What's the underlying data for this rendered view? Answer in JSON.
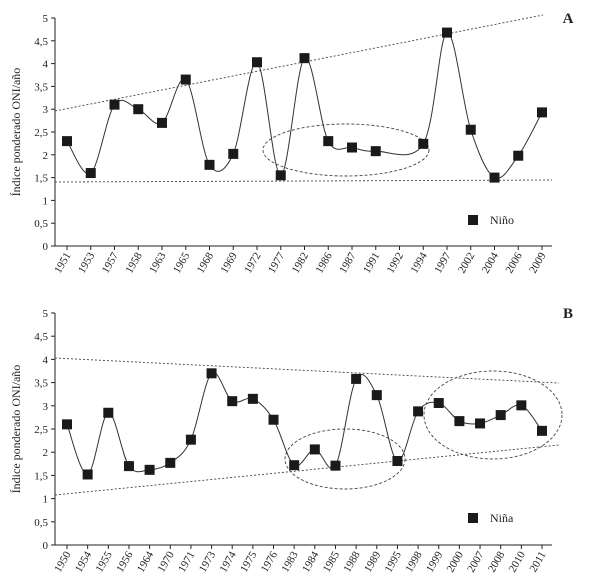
{
  "chart_data": [
    {
      "type": "line",
      "panel_label": "A",
      "ylabel": "Índice ponderado ONI/año",
      "ylim": [
        0,
        5
      ],
      "yticks": [
        "0",
        "0,5",
        "1",
        "1,5",
        "2",
        "2,5",
        "3",
        "3,5",
        "4",
        "4,5",
        "5"
      ],
      "categories": [
        "1951",
        "1953",
        "1957",
        "1958",
        "1963",
        "1965",
        "1968",
        "1969",
        "1972",
        "1977",
        "1982",
        "1986",
        "1987",
        "1991",
        "1992",
        "1994",
        "1997",
        "2002",
        "2004",
        "2006",
        "2009"
      ],
      "series": [
        {
          "name": "Niño",
          "values": [
            2.3,
            1.6,
            3.1,
            3.0,
            2.7,
            3.65,
            1.78,
            2.02,
            4.03,
            1.55,
            4.12,
            2.3,
            2.16,
            2.08,
            null,
            2.24,
            4.68,
            2.55,
            1.5,
            1.98,
            2.93
          ]
        }
      ],
      "legend": "bottom-right",
      "grid": false
    },
    {
      "type": "line",
      "panel_label": "B",
      "ylabel": "Índice ponderado ONI/año",
      "ylim": [
        0,
        5
      ],
      "yticks": [
        "0",
        "0,5",
        "1",
        "1,5",
        "2",
        "2,5",
        "3",
        "3,5",
        "4",
        "4,5",
        "5"
      ],
      "categories": [
        "1950",
        "1954",
        "1955",
        "1956",
        "1964",
        "1970",
        "1971",
        "1973",
        "1974",
        "1975",
        "1976",
        "1983",
        "1984",
        "1985",
        "1988",
        "1989",
        "1995",
        "1998",
        "1999",
        "2000",
        "2007",
        "2008",
        "2010",
        "2011"
      ],
      "series": [
        {
          "name": "Niña",
          "values": [
            2.6,
            1.52,
            2.85,
            1.7,
            1.62,
            1.77,
            2.27,
            3.7,
            3.1,
            3.15,
            2.7,
            1.72,
            2.06,
            1.71,
            3.58,
            3.23,
            1.81,
            2.88,
            3.06,
            2.67,
            2.62,
            2.8,
            3.01,
            2.46
          ]
        }
      ],
      "legend": "bottom-right",
      "grid": false
    }
  ]
}
